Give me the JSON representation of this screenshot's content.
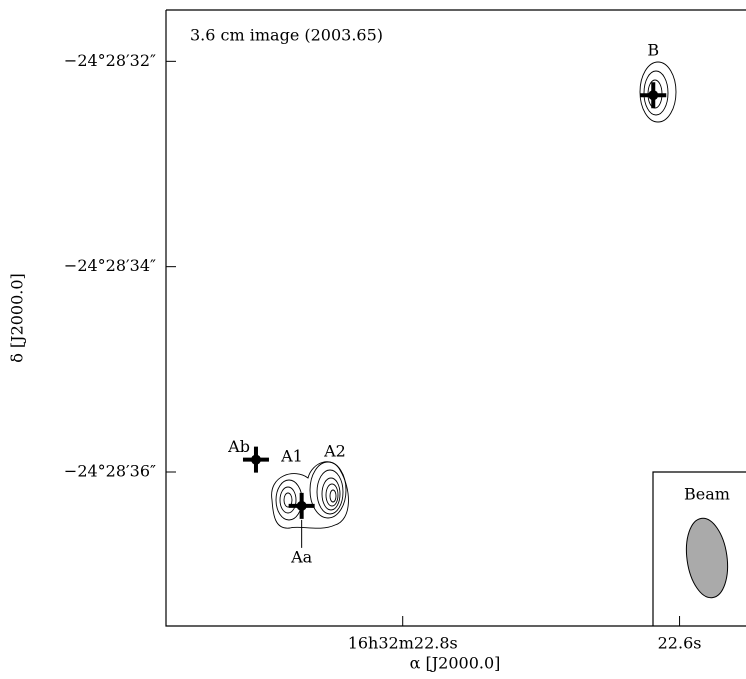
{
  "chart_data": {
    "type": "scatter",
    "title": "3.6 cm image (2003.65)",
    "x_label": "α [J2000.0]",
    "y_label": "δ [J2000.0]",
    "xlim": [
      22.971,
      22.552
    ],
    "ylim": [
      37.5,
      31.5
    ],
    "xticks": [
      {
        "value": 22.8,
        "label": "16h32m22.8s"
      },
      {
        "value": 22.6,
        "label": "22.6s"
      }
    ],
    "yticks": [
      {
        "value": 32,
        "label": "−24°28′32″"
      },
      {
        "value": 34,
        "label": "−24°28′34″"
      },
      {
        "value": 36,
        "label": "−24°28′36″"
      }
    ],
    "points": [
      {
        "name": "B",
        "x": 22.619,
        "y": 32.33
      },
      {
        "name": "Ab",
        "x": 22.906,
        "y": 35.88
      },
      {
        "name": "Aa",
        "x": 22.873,
        "y": 36.33
      }
    ],
    "contour_labels": [
      "A1",
      "A2"
    ],
    "beam_label": "Beam"
  }
}
